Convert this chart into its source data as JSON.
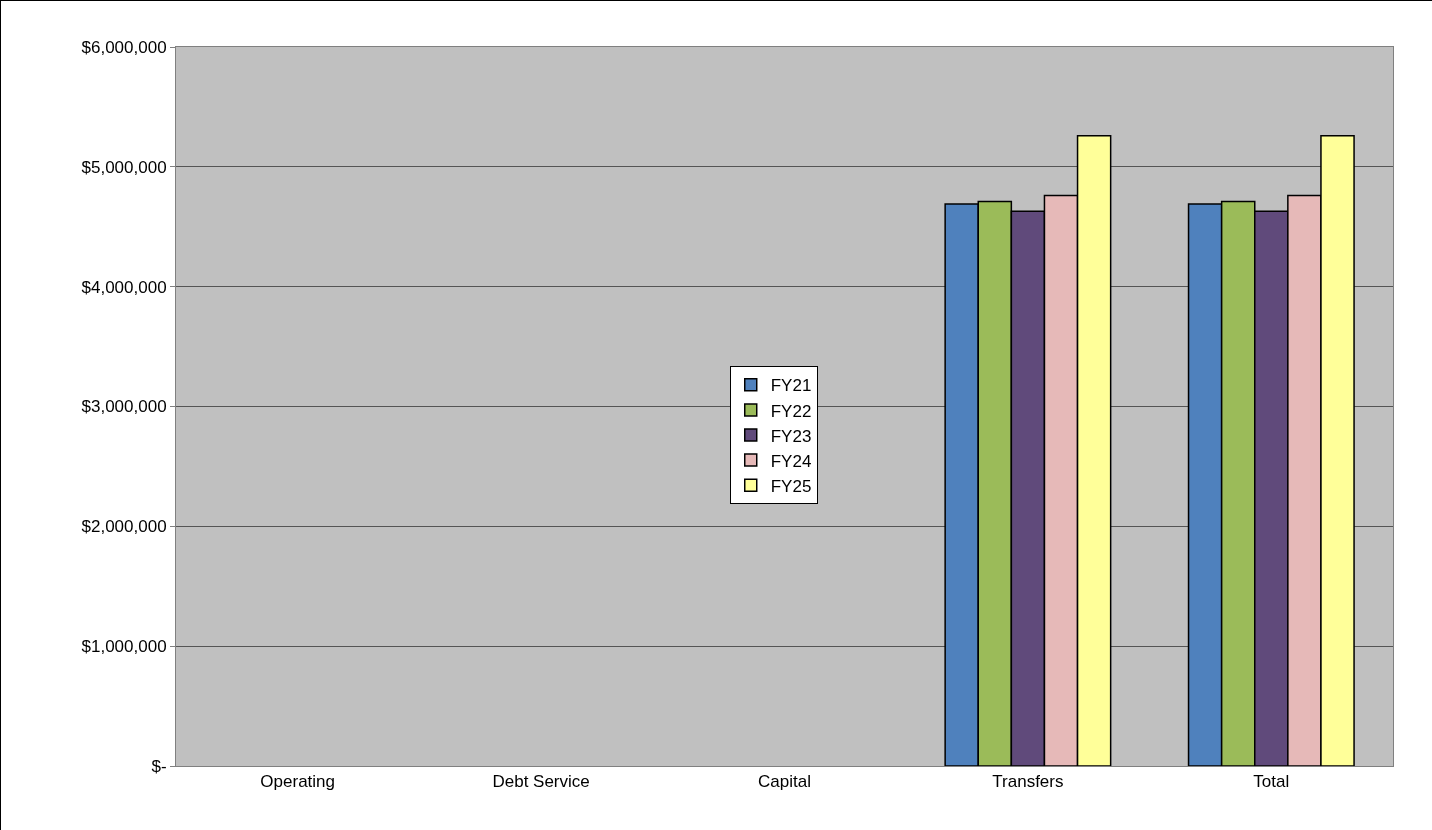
{
  "chart_data": {
    "type": "bar",
    "categories": [
      "Operating",
      "Debt Service",
      "Capital",
      "Transfers",
      "Total"
    ],
    "series": [
      {
        "name": "FY21",
        "color": "#4f81bd",
        "values": [
          null,
          null,
          null,
          4690000,
          4690000
        ]
      },
      {
        "name": "FY22",
        "color": "#9bbb59",
        "values": [
          null,
          null,
          null,
          4710000,
          4710000
        ]
      },
      {
        "name": "FY23",
        "color": "#604a7b",
        "values": [
          null,
          null,
          null,
          4630000,
          4630000
        ]
      },
      {
        "name": "FY24",
        "color": "#e6b9b8",
        "values": [
          null,
          null,
          null,
          4760000,
          4760000
        ]
      },
      {
        "name": "FY25",
        "color": "#ffff99",
        "values": [
          null,
          null,
          null,
          5260000,
          5260000
        ]
      }
    ],
    "ylim": [
      0,
      6000000
    ],
    "yticks": [
      {
        "value": 0,
        "label": "$-"
      },
      {
        "value": 1000000,
        "label": "$1,000,000"
      },
      {
        "value": 2000000,
        "label": "$2,000,000"
      },
      {
        "value": 3000000,
        "label": "$3,000,000"
      },
      {
        "value": 4000000,
        "label": "$4,000,000"
      },
      {
        "value": 5000000,
        "label": "$5,000,000"
      },
      {
        "value": 6000000,
        "label": "$6,000,000"
      }
    ],
    "grid": "y",
    "legend": "center"
  }
}
